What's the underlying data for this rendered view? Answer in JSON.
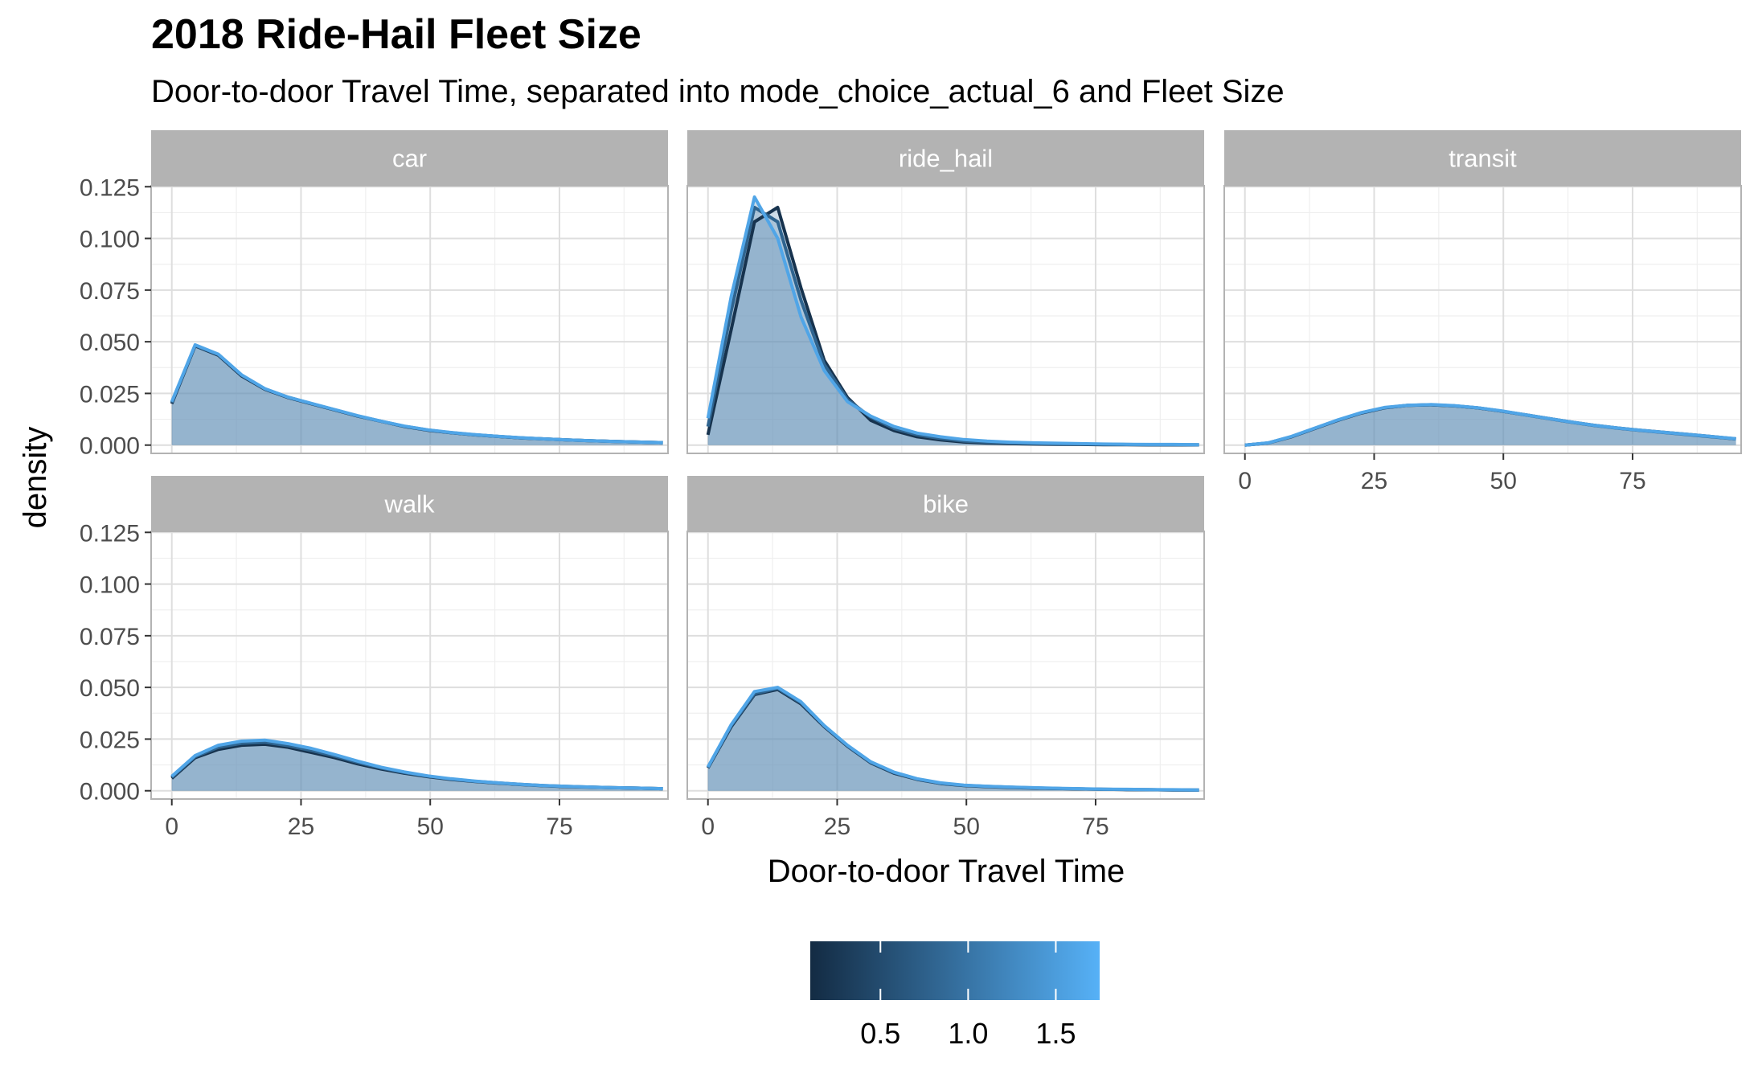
{
  "chart_data": {
    "type": "area",
    "title": "2018 Ride-Hail Fleet Size",
    "subtitle": "Door-to-door Travel Time, separated into mode_choice_actual_6 and Fleet Size",
    "xlabel": "Door-to-door Travel Time",
    "ylabel": "density",
    "xlim": [
      -4,
      96
    ],
    "ylim": [
      -0.004,
      0.1255
    ],
    "x_ticks": [
      0,
      25,
      50,
      75
    ],
    "x_tick_labels": [
      "0",
      "25",
      "50",
      "75"
    ],
    "y_ticks": [
      0,
      0.025,
      0.05,
      0.075,
      0.1,
      0.125
    ],
    "y_tick_labels": [
      "0.000",
      "0.025",
      "0.050",
      "0.075",
      "0.100",
      "0.125"
    ],
    "grid": true,
    "legend": {
      "position": "bottom",
      "type": "colorbar",
      "range": [
        0.1,
        1.75
      ],
      "ticks": [
        0.5,
        1.0,
        1.5
      ],
      "tick_labels": [
        "0.5",
        "1.0",
        "1.5"
      ],
      "color_low": "#132B43",
      "color_high": "#56B1F7"
    },
    "x": [
      0,
      4.5,
      9,
      13.5,
      18,
      22.5,
      27,
      31.5,
      36,
      40.5,
      45,
      49.5,
      54,
      58.5,
      63,
      67.5,
      72,
      76.5,
      81,
      85.5,
      90,
      95
    ],
    "panels": [
      {
        "name": "car",
        "series": [
          {
            "fleet": 0.2,
            "values": [
              0.02,
              0.048,
              0.0435,
              0.0335,
              0.027,
              0.023,
              0.02,
              0.017,
              0.014,
              0.0115,
              0.009,
              0.0072,
              0.006,
              0.005,
              0.0042,
              0.0035,
              0.003,
              0.0025,
              0.0021,
              0.0018,
              0.0015,
              0.0012
            ]
          },
          {
            "fleet": 0.8,
            "values": [
              0.0205,
              0.0482,
              0.0438,
              0.0338,
              0.0272,
              0.0232,
              0.0201,
              0.0171,
              0.0141,
              0.0115,
              0.0091,
              0.0073,
              0.006,
              0.005,
              0.0042,
              0.0035,
              0.003,
              0.0025,
              0.0021,
              0.0018,
              0.0015,
              0.0012
            ]
          },
          {
            "fleet": 1.6,
            "values": [
              0.021,
              0.0485,
              0.044,
              0.034,
              0.0273,
              0.0232,
              0.0202,
              0.0172,
              0.0142,
              0.0116,
              0.0092,
              0.0074,
              0.0061,
              0.0051,
              0.0043,
              0.0036,
              0.003,
              0.0025,
              0.0021,
              0.0018,
              0.0015,
              0.0012
            ]
          }
        ]
      },
      {
        "name": "ride_hail",
        "series": [
          {
            "fleet": 0.2,
            "values": [
              0.005,
              0.056,
              0.108,
              0.115,
              0.076,
              0.041,
              0.023,
              0.012,
              0.007,
              0.004,
              0.0025,
              0.0015,
              0.001,
              0.0007,
              0.0005,
              0.0004,
              0.0003,
              0.0002,
              0.0002,
              0.0001,
              0.0001,
              0.0001
            ]
          },
          {
            "fleet": 0.8,
            "values": [
              0.009,
              0.065,
              0.115,
              0.108,
              0.07,
              0.039,
              0.022,
              0.0135,
              0.008,
              0.005,
              0.0032,
              0.002,
              0.0014,
              0.001,
              0.0008,
              0.0006,
              0.0005,
              0.0004,
              0.0003,
              0.0002,
              0.0002,
              0.0002
            ]
          },
          {
            "fleet": 1.6,
            "values": [
              0.013,
              0.072,
              0.12,
              0.1,
              0.062,
              0.036,
              0.021,
              0.014,
              0.009,
              0.0058,
              0.004,
              0.0027,
              0.0019,
              0.0014,
              0.0011,
              0.0009,
              0.0007,
              0.0005,
              0.0004,
              0.0003,
              0.0003,
              0.0002
            ]
          }
        ]
      },
      {
        "name": "transit",
        "series": [
          {
            "fleet": 0.2,
            "values": [
              0.0,
              0.001,
              0.004,
              0.008,
              0.012,
              0.0155,
              0.018,
              0.0192,
              0.0195,
              0.019,
              0.018,
              0.0165,
              0.0148,
              0.013,
              0.0112,
              0.0096,
              0.0083,
              0.0072,
              0.0062,
              0.0052,
              0.0042,
              0.003
            ]
          },
          {
            "fleet": 0.8,
            "values": [
              0.0,
              0.001,
              0.0041,
              0.0081,
              0.0121,
              0.0156,
              0.0181,
              0.0192,
              0.0195,
              0.019,
              0.018,
              0.0165,
              0.0147,
              0.0129,
              0.0111,
              0.0095,
              0.0082,
              0.0071,
              0.0061,
              0.0051,
              0.0041,
              0.003
            ]
          },
          {
            "fleet": 1.6,
            "values": [
              0.0,
              0.0011,
              0.0042,
              0.0082,
              0.0122,
              0.0157,
              0.0182,
              0.0193,
              0.0196,
              0.0191,
              0.0181,
              0.0166,
              0.0148,
              0.013,
              0.0112,
              0.0096,
              0.0083,
              0.0072,
              0.0062,
              0.0052,
              0.0042,
              0.0031
            ]
          }
        ]
      },
      {
        "name": "walk",
        "series": [
          {
            "fleet": 0.2,
            "values": [
              0.006,
              0.016,
              0.02,
              0.022,
              0.0225,
              0.021,
              0.0185,
              0.016,
              0.013,
              0.0105,
              0.0085,
              0.0068,
              0.0055,
              0.0045,
              0.0037,
              0.003,
              0.0024,
              0.002,
              0.0017,
              0.0015,
              0.0013,
              0.001
            ]
          },
          {
            "fleet": 0.8,
            "values": [
              0.0065,
              0.0165,
              0.021,
              0.023,
              0.0235,
              0.0218,
              0.0195,
              0.0168,
              0.0137,
              0.011,
              0.0088,
              0.007,
              0.0057,
              0.0046,
              0.0038,
              0.0031,
              0.0025,
              0.0021,
              0.0018,
              0.0015,
              0.0013,
              0.001
            ]
          },
          {
            "fleet": 1.6,
            "values": [
              0.007,
              0.017,
              0.022,
              0.024,
              0.0245,
              0.0228,
              0.0205,
              0.0175,
              0.0143,
              0.0114,
              0.0091,
              0.0072,
              0.0058,
              0.0047,
              0.0038,
              0.0031,
              0.0025,
              0.0021,
              0.0018,
              0.0015,
              0.0013,
              0.001
            ]
          }
        ]
      },
      {
        "name": "bike",
        "series": [
          {
            "fleet": 0.2,
            "values": [
              0.011,
              0.031,
              0.0465,
              0.049,
              0.042,
              0.031,
              0.0215,
              0.0135,
              0.0085,
              0.0055,
              0.0035,
              0.0025,
              0.002,
              0.0016,
              0.0013,
              0.0011,
              0.0009,
              0.0007,
              0.0006,
              0.0005,
              0.0004,
              0.0003
            ]
          },
          {
            "fleet": 0.8,
            "values": [
              0.0112,
              0.0315,
              0.047,
              0.0495,
              0.0425,
              0.0313,
              0.0217,
              0.0137,
              0.0087,
              0.0056,
              0.0036,
              0.0026,
              0.0021,
              0.0017,
              0.0014,
              0.0011,
              0.0009,
              0.0007,
              0.0006,
              0.0005,
              0.0004,
              0.0003
            ]
          },
          {
            "fleet": 1.6,
            "values": [
              0.0115,
              0.032,
              0.048,
              0.05,
              0.043,
              0.0315,
              0.022,
              0.014,
              0.009,
              0.0058,
              0.0038,
              0.0027,
              0.0022,
              0.0018,
              0.0015,
              0.0012,
              0.001,
              0.0008,
              0.0007,
              0.0006,
              0.0005,
              0.0004
            ]
          }
        ]
      }
    ]
  },
  "colors": {
    "strip_bg": "#B3B3B3",
    "panel_border": "#B3B3B3",
    "grid_major": "#DEDEDE",
    "grid_minor": "#EFEFEF",
    "fill": "#5F8DB5",
    "fill_opacity": 0.55
  }
}
